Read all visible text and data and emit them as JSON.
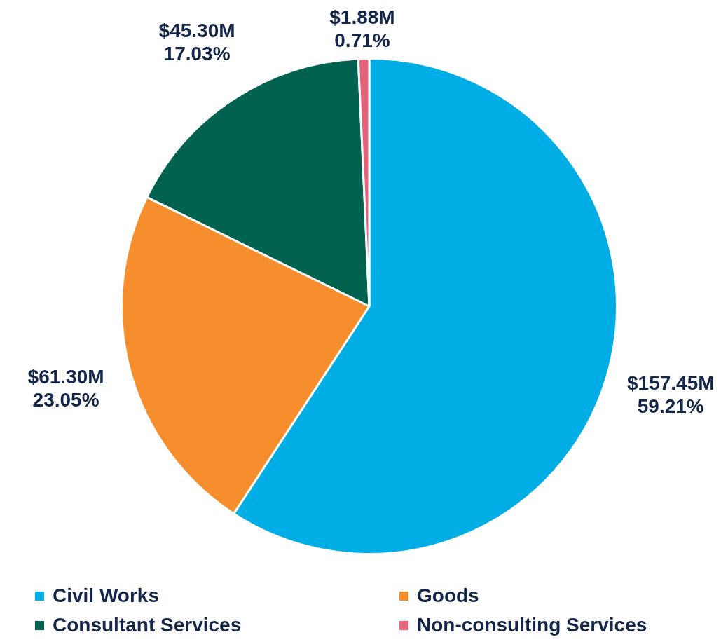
{
  "chart_data": {
    "type": "pie",
    "categories": [
      "Civil Works",
      "Goods",
      "Consultant Services",
      "Non-consulting Services"
    ],
    "values": [
      59.21,
      23.05,
      17.03,
      0.71
    ],
    "colors": [
      "#00ade4",
      "#f68e2d",
      "#00624f",
      "#e4627a"
    ],
    "value_labels": [
      "59.21%",
      "23.05%",
      "17.03%",
      "0.71%"
    ],
    "annotations": [
      "$157.45M",
      "$61.30M",
      "$45.30M",
      "$1.88M"
    ],
    "legend": "bottom"
  }
}
